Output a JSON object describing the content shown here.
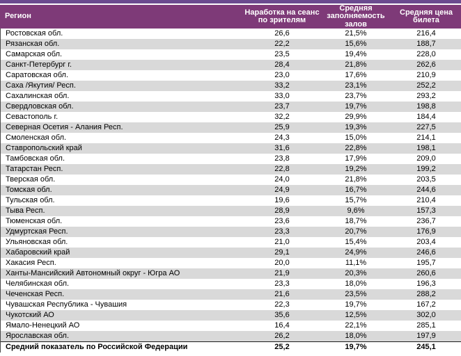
{
  "table": {
    "columns": [
      {
        "key": "region",
        "label": "Регион"
      },
      {
        "key": "per_session",
        "label": "Наработка на сеанс по зрителям"
      },
      {
        "key": "occupancy",
        "label": "Средняя заполняемость залов"
      },
      {
        "key": "price",
        "label": "Средняя цена билета"
      }
    ],
    "rows": [
      {
        "region": "Ростовская обл.",
        "per_session": "26,6",
        "occupancy": "21,5%",
        "price": "216,4"
      },
      {
        "region": "Рязанская обл.",
        "per_session": "22,2",
        "occupancy": "15,6%",
        "price": "188,7"
      },
      {
        "region": "Самарская обл.",
        "per_session": "23,5",
        "occupancy": "19,4%",
        "price": "228,0"
      },
      {
        "region": "Санкт-Петербург г.",
        "per_session": "28,4",
        "occupancy": "21,8%",
        "price": "262,6"
      },
      {
        "region": "Саратовская обл.",
        "per_session": "23,0",
        "occupancy": "17,6%",
        "price": "210,9"
      },
      {
        "region": "Саха /Якутия/ Респ.",
        "per_session": "33,2",
        "occupancy": "23,1%",
        "price": "252,2"
      },
      {
        "region": "Сахалинская обл.",
        "per_session": "33,0",
        "occupancy": "23,7%",
        "price": "293,2"
      },
      {
        "region": "Свердловская обл.",
        "per_session": "23,7",
        "occupancy": "19,7%",
        "price": "198,8"
      },
      {
        "region": "Севастополь г.",
        "per_session": "32,2",
        "occupancy": "29,9%",
        "price": "184,4"
      },
      {
        "region": "Северная Осетия - Алания Респ.",
        "per_session": "25,9",
        "occupancy": "19,3%",
        "price": "227,5"
      },
      {
        "region": "Смоленская обл.",
        "per_session": "24,3",
        "occupancy": "15,0%",
        "price": "214,1"
      },
      {
        "region": "Ставропольский край",
        "per_session": "31,6",
        "occupancy": "22,8%",
        "price": "198,1"
      },
      {
        "region": "Тамбовская обл.",
        "per_session": "23,8",
        "occupancy": "17,9%",
        "price": "209,0"
      },
      {
        "region": "Татарстан Респ.",
        "per_session": "22,8",
        "occupancy": "19,2%",
        "price": "199,2"
      },
      {
        "region": "Тверская обл.",
        "per_session": "24,0",
        "occupancy": "21,8%",
        "price": "203,5"
      },
      {
        "region": "Томская обл.",
        "per_session": "24,9",
        "occupancy": "16,7%",
        "price": "244,6"
      },
      {
        "region": "Тульская обл.",
        "per_session": "19,6",
        "occupancy": "15,7%",
        "price": "210,4"
      },
      {
        "region": "Тыва Респ.",
        "per_session": "28,9",
        "occupancy": "9,6%",
        "price": "157,3"
      },
      {
        "region": "Тюменская обл.",
        "per_session": "23,6",
        "occupancy": "18,7%",
        "price": "236,7"
      },
      {
        "region": "Удмуртская Респ.",
        "per_session": "23,3",
        "occupancy": "20,7%",
        "price": "176,9"
      },
      {
        "region": "Ульяновская обл.",
        "per_session": "21,0",
        "occupancy": "15,4%",
        "price": "203,4"
      },
      {
        "region": "Хабаровский край",
        "per_session": "29,1",
        "occupancy": "24,9%",
        "price": "246,6"
      },
      {
        "region": "Хакасия Респ.",
        "per_session": "20,0",
        "occupancy": "11,1%",
        "price": "195,7"
      },
      {
        "region": "Ханты-Мансийский Автономный округ - Югра АО",
        "per_session": "21,9",
        "occupancy": "20,3%",
        "price": "260,6"
      },
      {
        "region": "Челябинская обл.",
        "per_session": "23,3",
        "occupancy": "18,0%",
        "price": "196,3"
      },
      {
        "region": "Чеченская Респ.",
        "per_session": "21,6",
        "occupancy": "23,5%",
        "price": "288,2"
      },
      {
        "region": "Чувашская Республика - Чувашия",
        "per_session": "22,3",
        "occupancy": "19,7%",
        "price": "167,2"
      },
      {
        "region": "Чукотский АО",
        "per_session": "35,6",
        "occupancy": "12,5%",
        "price": "302,0"
      },
      {
        "region": "Ямало-Ненецкий АО",
        "per_session": "16,4",
        "occupancy": "22,1%",
        "price": "285,1"
      },
      {
        "region": "Ярославская обл.",
        "per_session": "26,2",
        "occupancy": "18,0%",
        "price": "197,9"
      }
    ],
    "total_row": {
      "region": "Средний показатель по Российской Федерации",
      "per_session": "25,2",
      "occupancy": "19,7%",
      "price": "245,1"
    }
  },
  "colors": {
    "accent_bar": "#6b4a8f",
    "header_bg": "#7e3a78",
    "header_text": "#ffffff",
    "stripe_row": "#d9d9d9",
    "body_text": "#000000"
  }
}
